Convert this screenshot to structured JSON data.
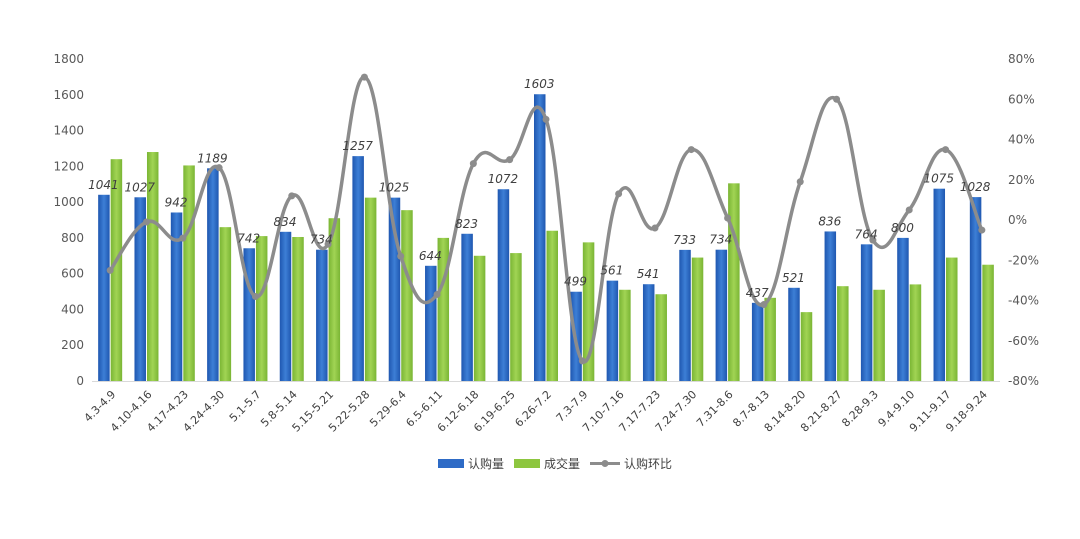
{
  "chart_data": {
    "type": "bar",
    "categories": [
      "4.3-4.9",
      "4.10-4.16",
      "4.17-4.23",
      "4.24-4.30",
      "5.1-5.7",
      "5.8-5.14",
      "5.15-5.21",
      "5.22-5.28",
      "5.29-6.4",
      "6.5-6.11",
      "6.12-6.18",
      "6.19-6.25",
      "6.26-7.2",
      "7.3-7.9",
      "7.10-7.16",
      "7.17-7.23",
      "7.24-7.30",
      "7.31-8.6",
      "8.7-8.13",
      "8.14-8.20",
      "8.21-8.27",
      "8.28-9.3",
      "9.4-9.10",
      "9.11-9.17",
      "9.18-9.24"
    ],
    "series": [
      {
        "name": "认购量",
        "type": "bar",
        "axis": "left",
        "color": "#2e6bc6",
        "values": [
          1041,
          1027,
          942,
          1189,
          742,
          834,
          734,
          1257,
          1025,
          644,
          823,
          1072,
          1603,
          499,
          561,
          541,
          733,
          734,
          437,
          521,
          836,
          764,
          800,
          1075,
          1028
        ],
        "labels": [
          "1041",
          "1027",
          "942",
          "1189",
          "742",
          "834",
          "734",
          "1257",
          "1025",
          "644",
          "823",
          "1072",
          "1603",
          "499",
          "561",
          "541",
          "733",
          "734",
          "437",
          "521",
          "836",
          "764",
          "800",
          "1075",
          "1028"
        ]
      },
      {
        "name": "成交量",
        "type": "bar",
        "axis": "left",
        "color": "#8dc63f",
        "values": [
          1240,
          1280,
          1205,
          860,
          810,
          805,
          910,
          1025,
          955,
          800,
          700,
          715,
          840,
          775,
          510,
          485,
          690,
          1105,
          465,
          385,
          530,
          510,
          540,
          690,
          650
        ]
      },
      {
        "name": "认购环比",
        "type": "line",
        "axis": "right",
        "color": "#8c8c8c",
        "values": [
          -25,
          -1,
          -9,
          26,
          -38,
          12,
          -12,
          71,
          -18,
          -37,
          28,
          30,
          50,
          -70,
          13,
          -4,
          35,
          1,
          -42,
          19,
          60,
          -10,
          5,
          35,
          -5
        ]
      }
    ],
    "y_left": {
      "min": 0,
      "max": 1800,
      "ticks": [
        "0",
        "200",
        "400",
        "600",
        "800",
        "1000",
        "1200",
        "1400",
        "1600",
        "1800"
      ]
    },
    "y_right": {
      "min": -80,
      "max": 80,
      "ticks": [
        "-80%",
        "-60%",
        "-40%",
        "-20%",
        "0%",
        "20%",
        "40%",
        "60%",
        "80%"
      ]
    },
    "legend": {
      "position": "bottom",
      "items": [
        "认购量",
        "成交量",
        "认购环比"
      ]
    },
    "grid": false
  }
}
